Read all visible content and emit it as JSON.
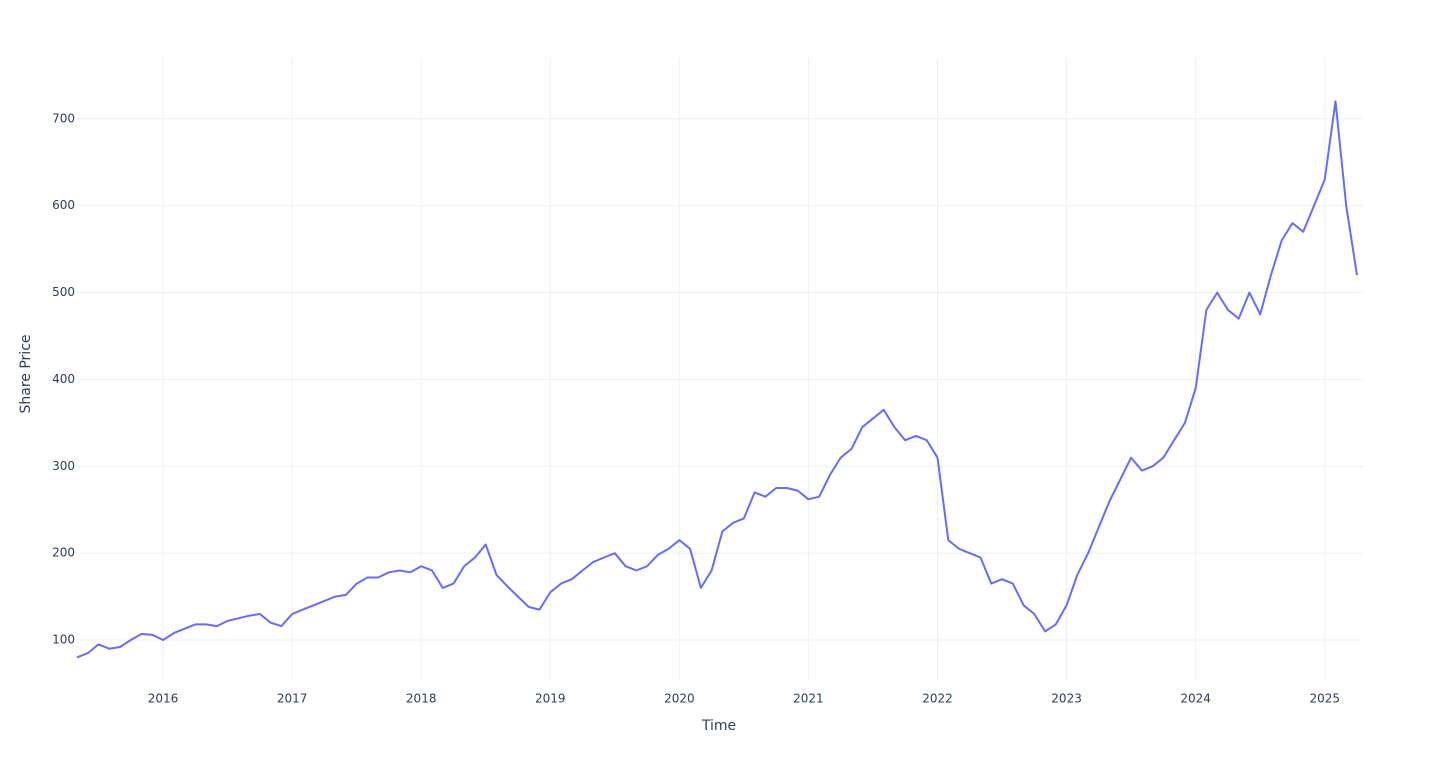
{
  "chart_data": {
    "type": "line",
    "x_label": "Time",
    "y_label": "Share Price",
    "x": [
      "2015-05",
      "2015-06",
      "2015-07",
      "2015-08",
      "2015-09",
      "2015-10",
      "2015-11",
      "2015-12",
      "2016-01",
      "2016-02",
      "2016-03",
      "2016-04",
      "2016-05",
      "2016-06",
      "2016-07",
      "2016-08",
      "2016-09",
      "2016-10",
      "2016-11",
      "2016-12",
      "2017-01",
      "2017-02",
      "2017-03",
      "2017-04",
      "2017-05",
      "2017-06",
      "2017-07",
      "2017-08",
      "2017-09",
      "2017-10",
      "2017-11",
      "2017-12",
      "2018-01",
      "2018-02",
      "2018-03",
      "2018-04",
      "2018-05",
      "2018-06",
      "2018-07",
      "2018-08",
      "2018-09",
      "2018-10",
      "2018-11",
      "2018-12",
      "2019-01",
      "2019-02",
      "2019-03",
      "2019-04",
      "2019-05",
      "2019-06",
      "2019-07",
      "2019-08",
      "2019-09",
      "2019-10",
      "2019-11",
      "2019-12",
      "2020-01",
      "2020-02",
      "2020-03",
      "2020-04",
      "2020-05",
      "2020-06",
      "2020-07",
      "2020-08",
      "2020-09",
      "2020-10",
      "2020-11",
      "2020-12",
      "2021-01",
      "2021-02",
      "2021-03",
      "2021-04",
      "2021-05",
      "2021-06",
      "2021-07",
      "2021-08",
      "2021-09",
      "2021-10",
      "2021-11",
      "2021-12",
      "2022-01",
      "2022-02",
      "2022-03",
      "2022-04",
      "2022-05",
      "2022-06",
      "2022-07",
      "2022-08",
      "2022-09",
      "2022-10",
      "2022-11",
      "2022-12",
      "2023-01",
      "2023-02",
      "2023-03",
      "2023-04",
      "2023-05",
      "2023-06",
      "2023-07",
      "2023-08",
      "2023-09",
      "2023-10",
      "2023-11",
      "2023-12",
      "2024-01",
      "2024-02",
      "2024-03",
      "2024-04",
      "2024-05",
      "2024-06",
      "2024-07",
      "2024-08",
      "2024-09",
      "2024-10",
      "2024-11",
      "2024-12",
      "2025-01",
      "2025-02",
      "2025-03",
      "2025-04"
    ],
    "series": [
      {
        "name": "Share Price",
        "color": "#636efa",
        "values": [
          80,
          85,
          95,
          90,
          92,
          100,
          107,
          106,
          100,
          108,
          113,
          118,
          118,
          116,
          122,
          125,
          128,
          130,
          120,
          116,
          130,
          135,
          140,
          145,
          150,
          152,
          165,
          172,
          172,
          178,
          180,
          178,
          185,
          180,
          160,
          165,
          185,
          195,
          210,
          175,
          162,
          150,
          138,
          135,
          155,
          165,
          170,
          180,
          190,
          195,
          200,
          185,
          180,
          185,
          198,
          205,
          215,
          205,
          160,
          180,
          225,
          235,
          240,
          270,
          265,
          275,
          275,
          272,
          262,
          265,
          290,
          310,
          320,
          345,
          355,
          365,
          345,
          330,
          335,
          330,
          310,
          215,
          205,
          200,
          195,
          165,
          170,
          165,
          140,
          130,
          110,
          118,
          140,
          175,
          200,
          230,
          260,
          285,
          310,
          295,
          300,
          310,
          330,
          350,
          390,
          480,
          500,
          480,
          470,
          500,
          475,
          520,
          560,
          580,
          570,
          600,
          630,
          720,
          600,
          520
        ]
      }
    ],
    "xlim": [
      "2015-05",
      "2025-04"
    ],
    "xticks": [
      "2016",
      "2017",
      "2018",
      "2019",
      "2020",
      "2021",
      "2022",
      "2023",
      "2024",
      "2025"
    ],
    "ylim": [
      54,
      770
    ],
    "yticks": [
      100,
      200,
      300,
      400,
      500,
      600,
      700
    ],
    "grid": true
  }
}
